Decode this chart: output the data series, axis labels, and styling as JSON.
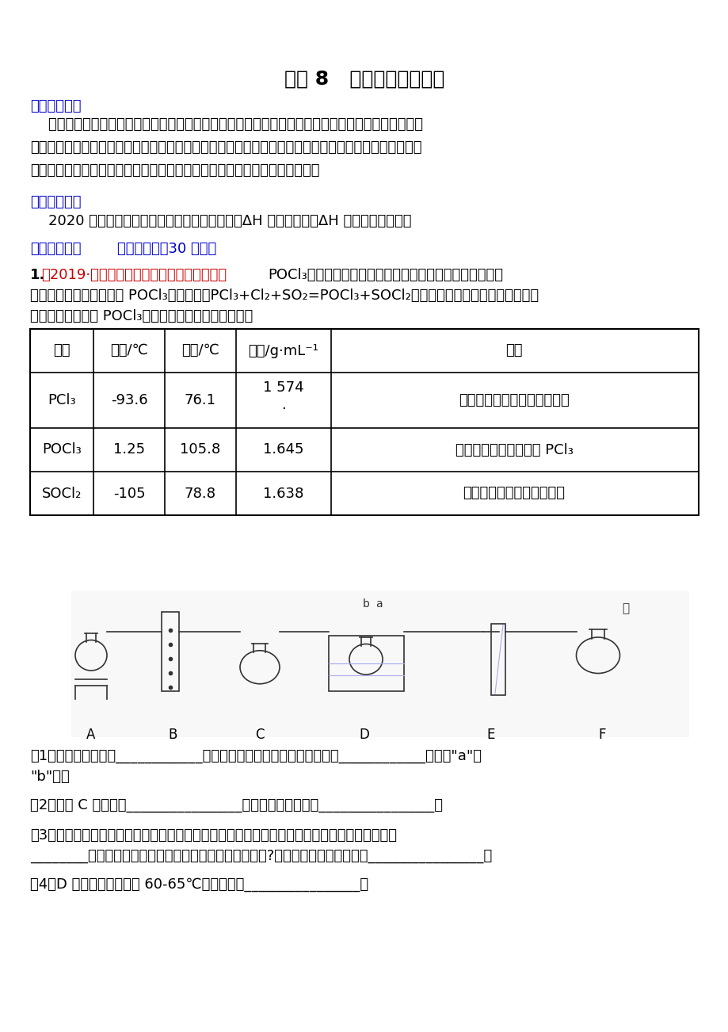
{
  "title": "重点 8   无机化工流程分析",
  "bg_color": "#ffffff",
  "section1_label": "【命题规律】",
  "section1_body": "    本专题的考查点主要是利用元素化合物知识结合化学实验和无机化工流程分析图进行分析，考查的面\n比较广，有实验器材的名称考查、元素化合物知识、沉淀溶解平衡、电化学知识等，而且考查频率较高；\n题型以填空题为主，难度中等。考查的核心素养以宏观辨识与微观探析为主。",
  "section2_label": "【备考建议】",
  "section2_body": "    2020 年高考备考的重点仍以盖斯定律的应用、ΔH 的相关计算及ΔH 的大小比较为主。",
  "section3_label": "【限时检测】",
  "section3_label2": "（建议用时：30 分钟）",
  "q1_prefix": "1.",
  "q1_source": "（2019·东北育才学校科学高中部高考模拟）",
  "q1_text1": "POCl₃是重要的基础化工原料，广泛用于制药、染料、表面",
  "q1_text2": "活性剂等行业。一种制备 POCl₃的原理为：PCl₃+Cl₂+SO₂=POCl₃+SOCl₂。某化学学习小组拟利用如下装置",
  "q1_text3": "在实验室模拟制备 POCl₃。有关物质的部分性质如下：",
  "table_headers": [
    "物质",
    "熔点/℃",
    "沸点/℃",
    "密度/g·mL⁻¹",
    "其它"
  ],
  "table_rows": [
    [
      "PCl₃",
      "-93.6",
      "76.1",
      "1 574\n.",
      "遇水强烈水解，易与氧气反应"
    ],
    [
      "POCl₃",
      "1.25",
      "105.8",
      "1.645",
      "遇水强烈水解，能溶于 PCl₃"
    ],
    [
      "SOCl₂",
      "-105",
      "78.8",
      "1.638",
      "遇水强烈水解，加热易分解"
    ]
  ],
  "q1_sub1": "（1）仪器甲的名称为____________，与自来水进水管连接的接口编号是____________。（填\"a\"或\n\"b\"）。",
  "q1_sub2": "（2）装置 C 的作用是________________，乙中试剂的名称为________________。",
  "q1_sub3": "（3）该装置有一处缺陷，解决的方法是在现有装置中再添加一个装置，该装置中应装入的试剂为\n________（写名称）。若无该装置，则可能会有什么后果?请用化学方程式进行说明________________。",
  "q1_sub4": "（4）D 中反应温度控制在 60-65℃，其原因是________________。"
}
